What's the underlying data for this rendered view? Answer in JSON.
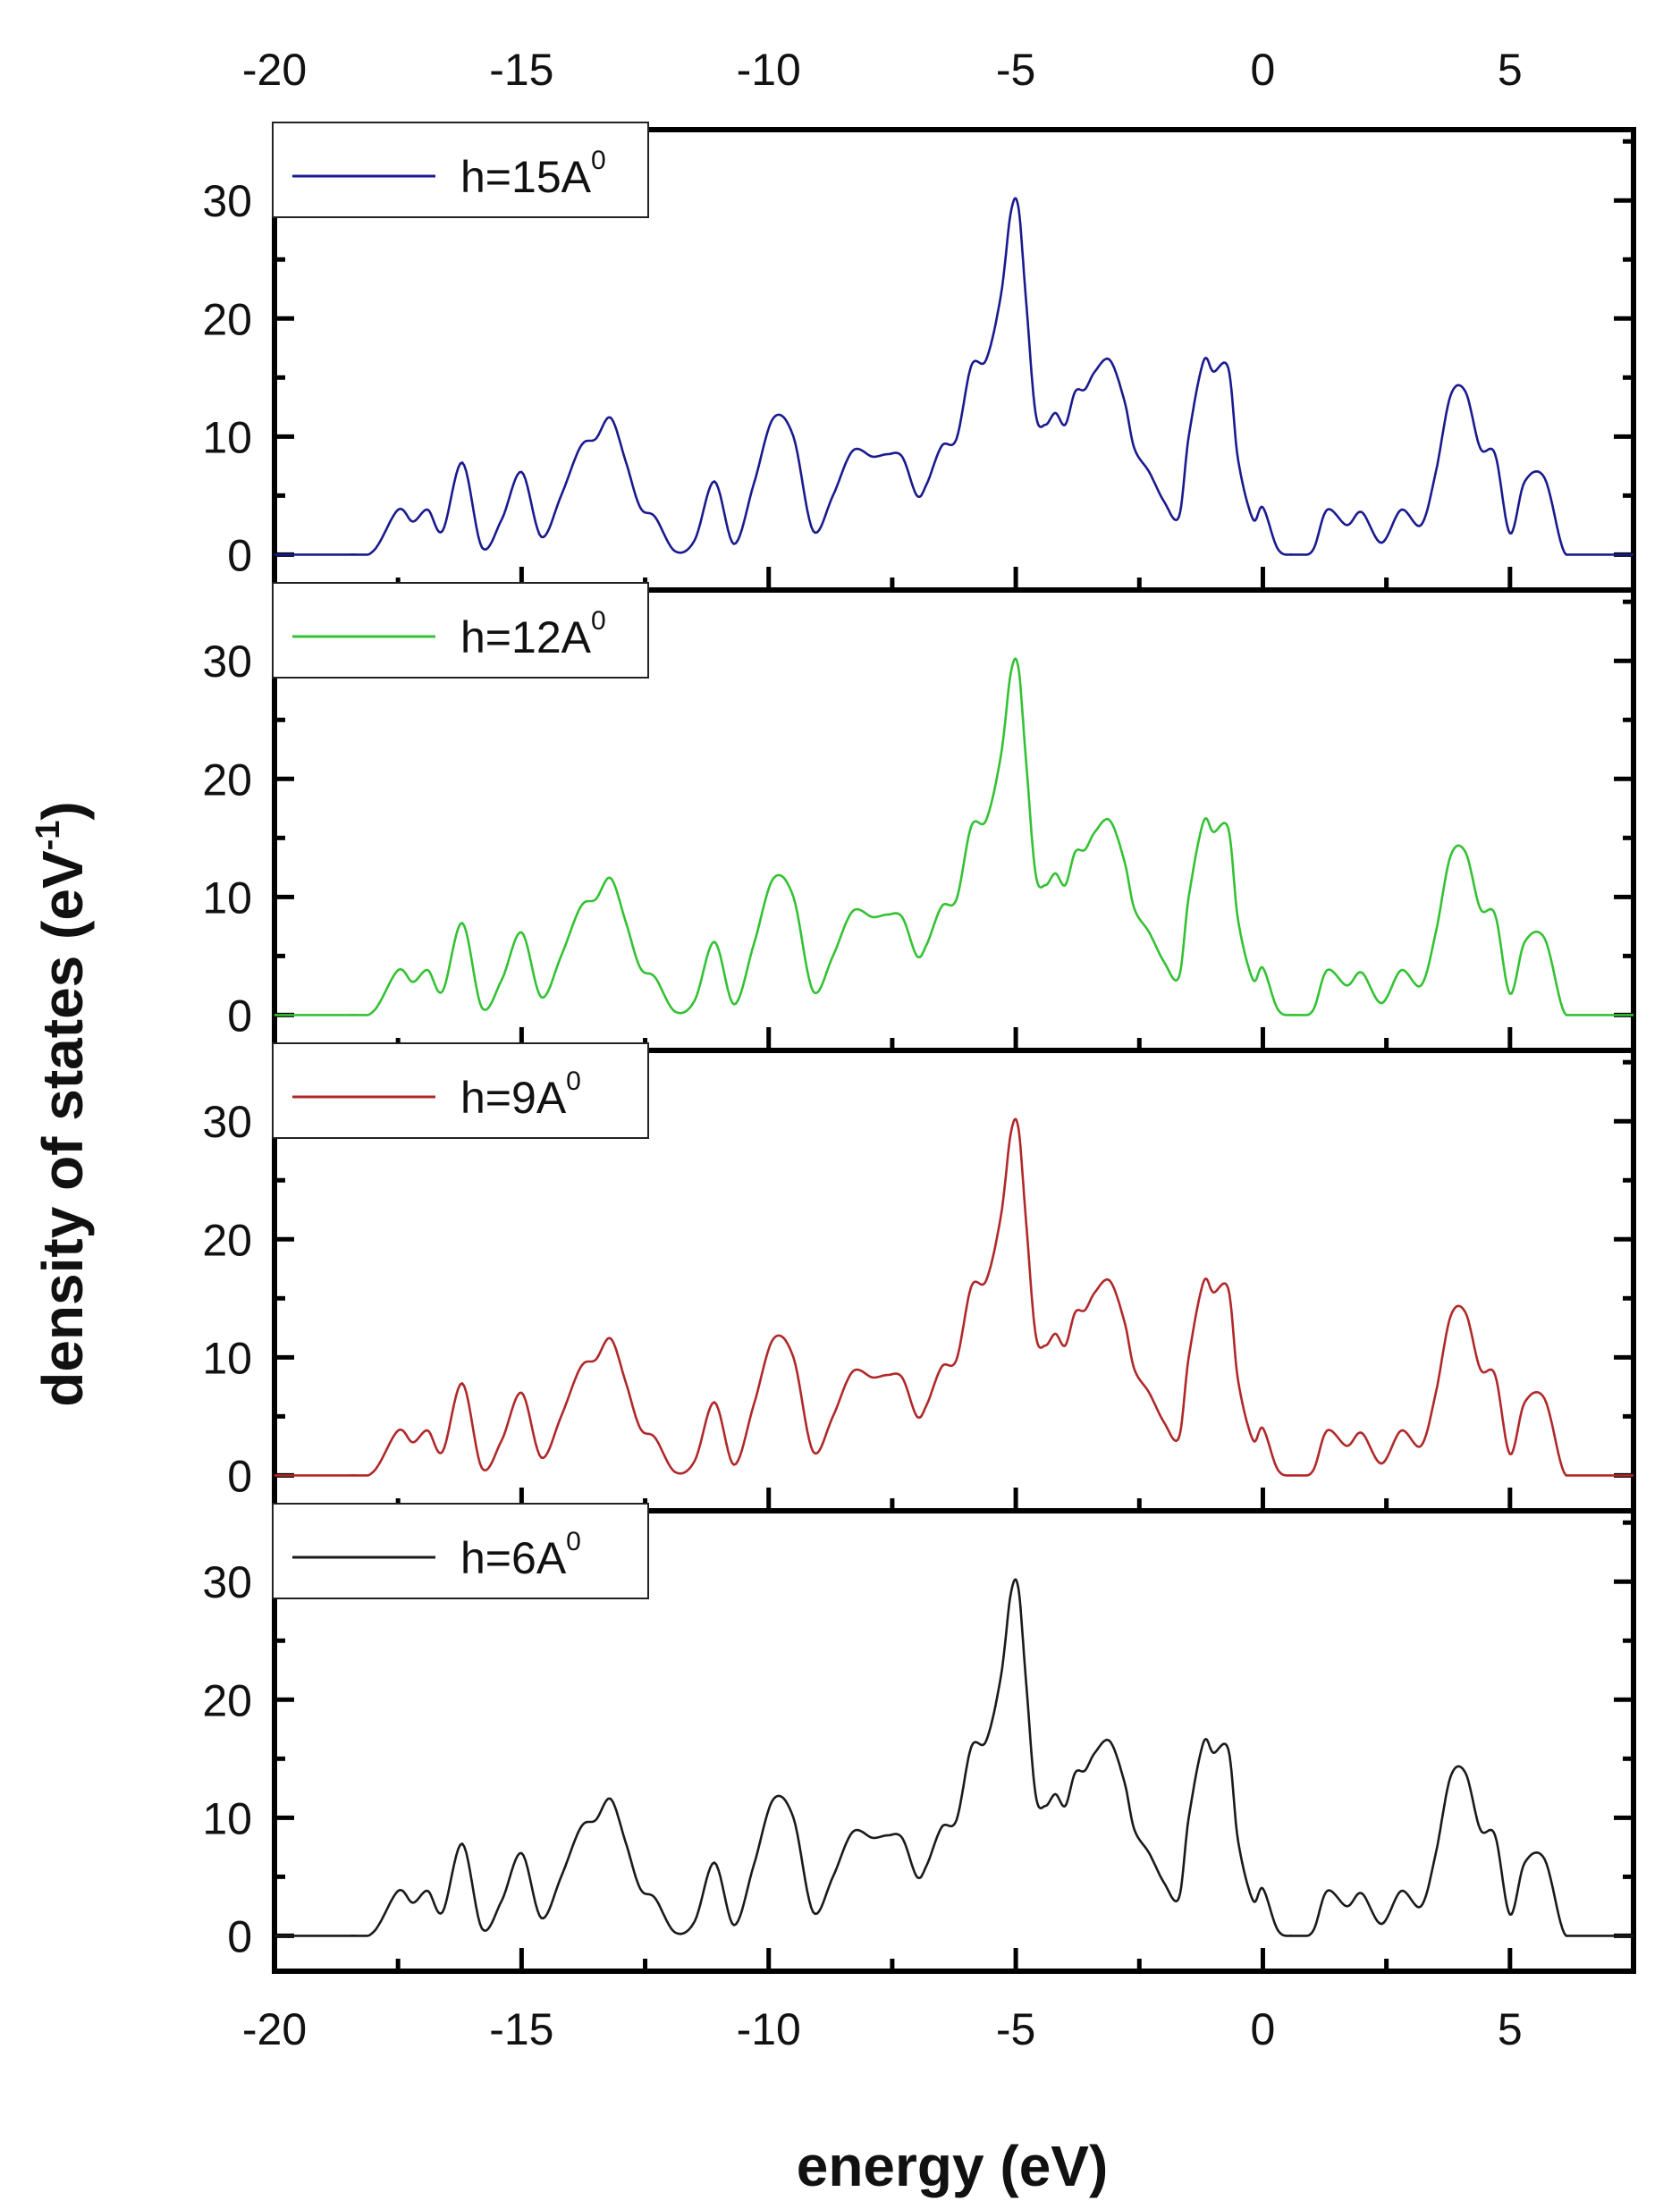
{
  "chart_data": {
    "type": "line",
    "layout": "stacked-panels",
    "shared_x": true,
    "xlabel": "energy (eV)",
    "ylabel_main": "density of states (eV",
    "ylabel_sup": "-1",
    "ylabel_close": ")",
    "xlim": [
      -20,
      7.5
    ],
    "x_ticks": [
      -20,
      -15,
      -10,
      -5,
      0,
      5
    ],
    "x_tick_labels": [
      "-20",
      "-15",
      "-10",
      "-5",
      "0",
      "5"
    ],
    "ylim": [
      -3,
      36
    ],
    "y_ticks": [
      0,
      10,
      20,
      30
    ],
    "y_tick_labels": [
      "0",
      "10",
      "20",
      "30"
    ],
    "dos_profile": {
      "x": [
        -20,
        -18.5,
        -18.0,
        -17.5,
        -17.2,
        -16.9,
        -16.6,
        -16.2,
        -15.8,
        -15.4,
        -15.0,
        -14.6,
        -14.2,
        -13.8,
        -13.5,
        -13.2,
        -12.9,
        -12.6,
        -12.3,
        -11.9,
        -11.5,
        -11.1,
        -10.7,
        -10.3,
        -9.9,
        -9.5,
        -9.1,
        -8.7,
        -8.3,
        -7.9,
        -7.6,
        -7.3,
        -7.0,
        -6.8,
        -6.5,
        -6.2,
        -5.9,
        -5.6,
        -5.3,
        -5.1,
        -4.95,
        -4.8,
        -4.6,
        -4.4,
        -4.2,
        -4.0,
        -3.8,
        -3.6,
        -3.4,
        -3.1,
        -2.8,
        -2.6,
        -2.3,
        -2.0,
        -1.7,
        -1.5,
        -1.2,
        -1.0,
        -0.7,
        -0.5,
        -0.2,
        0.0,
        0.3,
        0.6,
        1.0,
        1.3,
        1.7,
        2.0,
        2.4,
        2.8,
        3.2,
        3.5,
        3.8,
        4.1,
        4.4,
        4.7,
        5.0,
        5.3,
        5.7,
        6.1,
        6.5,
        7.5
      ],
      "y": [
        0,
        0,
        0.3,
        3.8,
        2.8,
        3.8,
        2.0,
        7.8,
        0.6,
        3.0,
        7.0,
        1.5,
        5.0,
        9.2,
        9.8,
        11.6,
        8.0,
        4.0,
        3.2,
        0.3,
        1.2,
        6.2,
        0.9,
        6.0,
        11.6,
        10.0,
        2.0,
        5.0,
        8.8,
        8.3,
        8.5,
        8.3,
        5.0,
        6.0,
        9.2,
        9.8,
        16.0,
        16.5,
        22.0,
        29.0,
        29.5,
        22.0,
        12.0,
        11.0,
        12.0,
        11.0,
        13.8,
        14.0,
        15.5,
        16.5,
        13.0,
        9.0,
        7.0,
        4.5,
        3.2,
        10.0,
        16.4,
        15.5,
        15.8,
        8.0,
        3.0,
        4.0,
        0.5,
        0.0,
        0.3,
        3.8,
        2.5,
        3.6,
        1.0,
        3.8,
        2.5,
        7.0,
        13.5,
        13.8,
        9.0,
        8.5,
        1.8,
        6.2,
        6.5,
        0.2,
        0.0,
        0.0
      ]
    },
    "series": [
      {
        "name": "h=15A",
        "legend_main": "h=15A",
        "legend_sup": "0",
        "color": "#1a1a8f"
      },
      {
        "name": "h=12A",
        "legend_main": "h=12A",
        "legend_sup": "0",
        "color": "#33c233"
      },
      {
        "name": "h=9A",
        "legend_main": "h=9A",
        "legend_sup": "0",
        "color": "#b0282a"
      },
      {
        "name": "h=6A",
        "legend_main": "h=6A",
        "legend_sup": "0",
        "color": "#1a1a1a"
      }
    ]
  }
}
